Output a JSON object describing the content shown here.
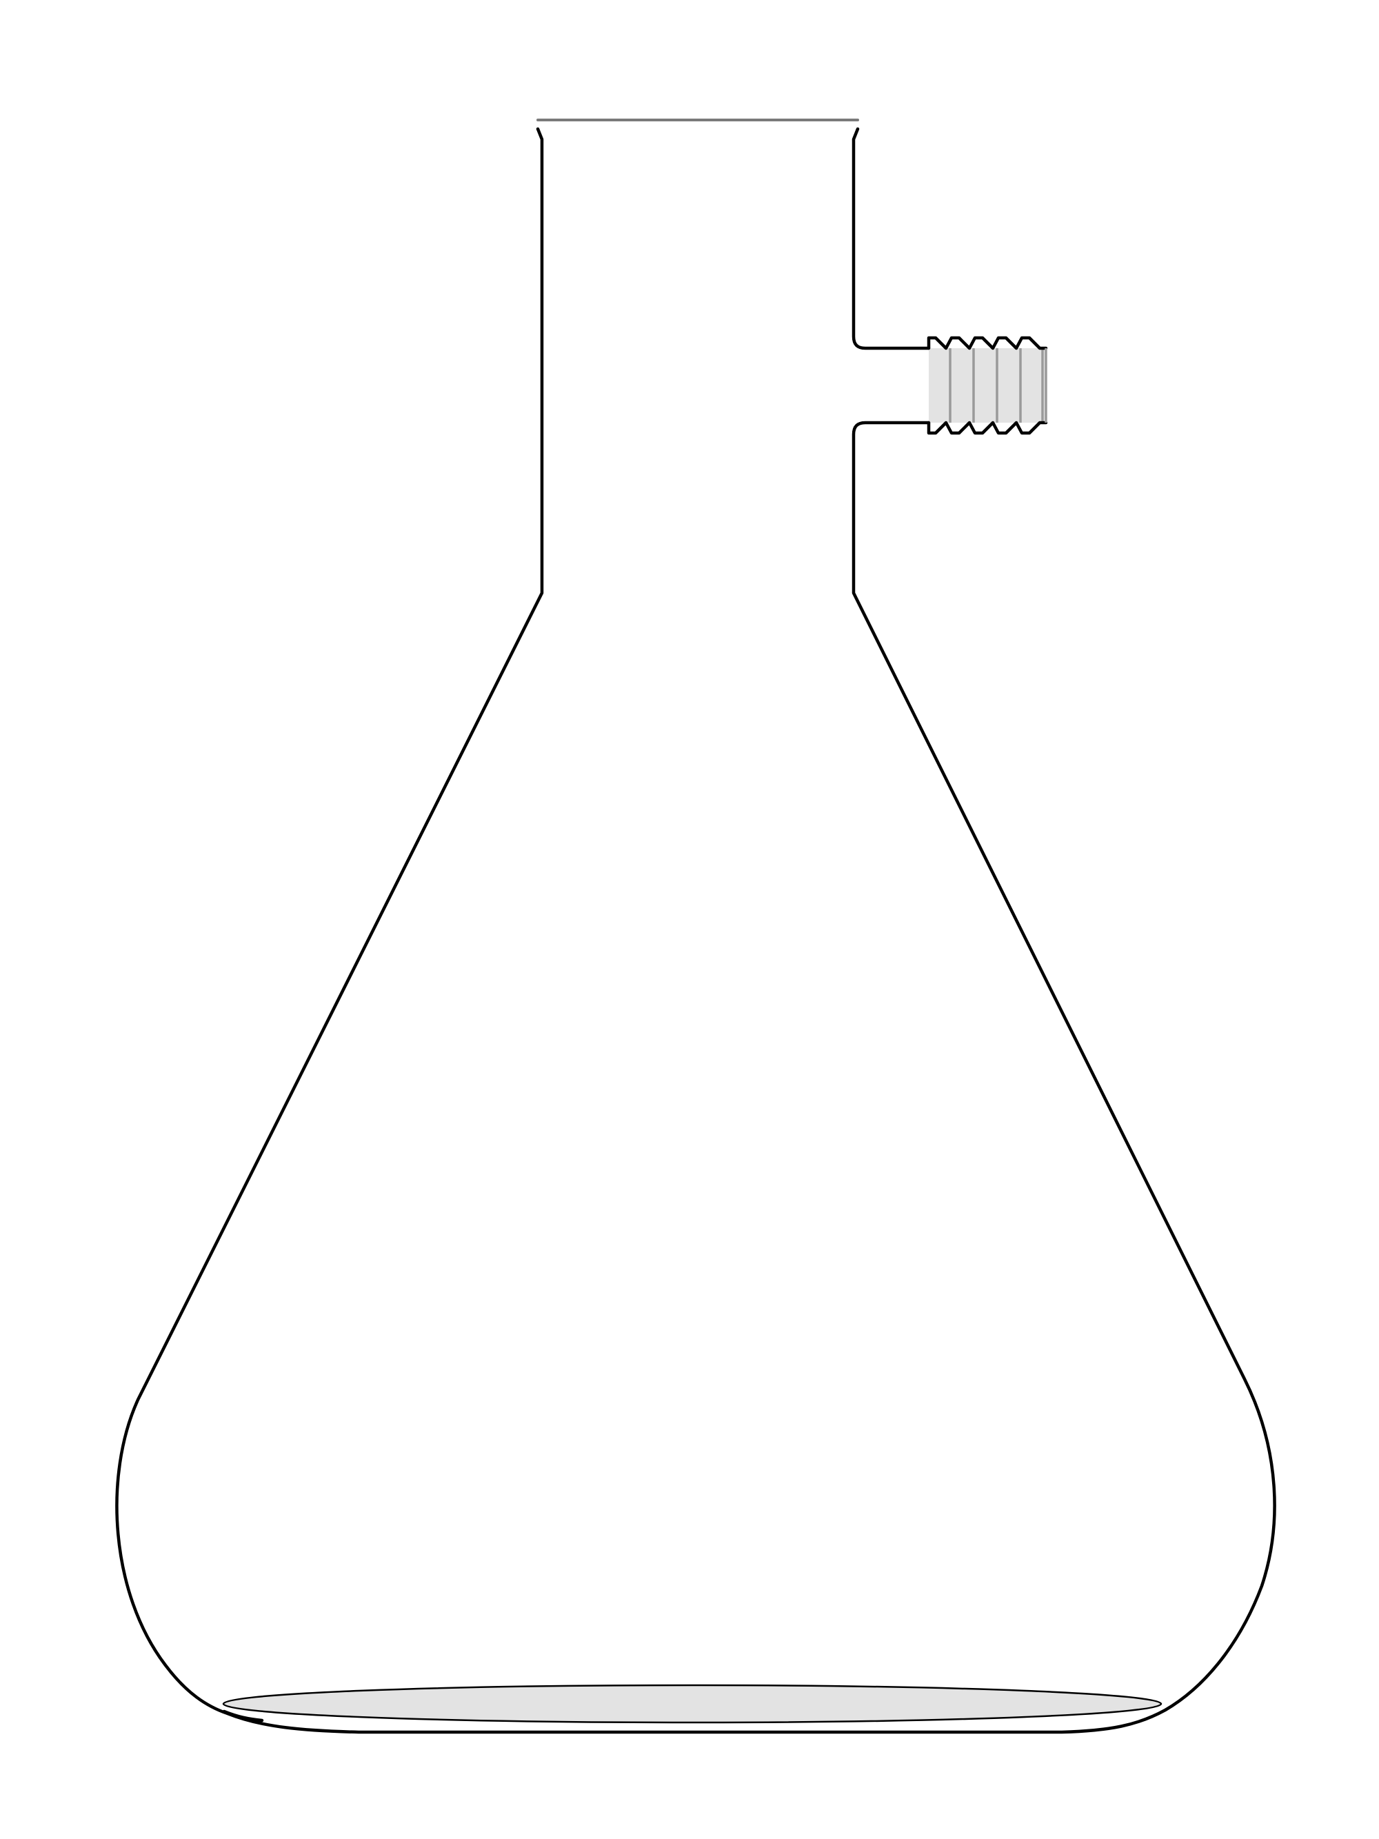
{
  "figure": {
    "subject": "flask-with-threaded-side-arm",
    "colors": {
      "outline": "#000000",
      "rim": "#7a7a7a",
      "thread_fill": "#e3e3e3",
      "thread_lines": "#9a9a9a",
      "base_fill": "#e3e3e3",
      "background": "#ffffff"
    },
    "side_arm": {
      "thread_count": 5
    }
  }
}
